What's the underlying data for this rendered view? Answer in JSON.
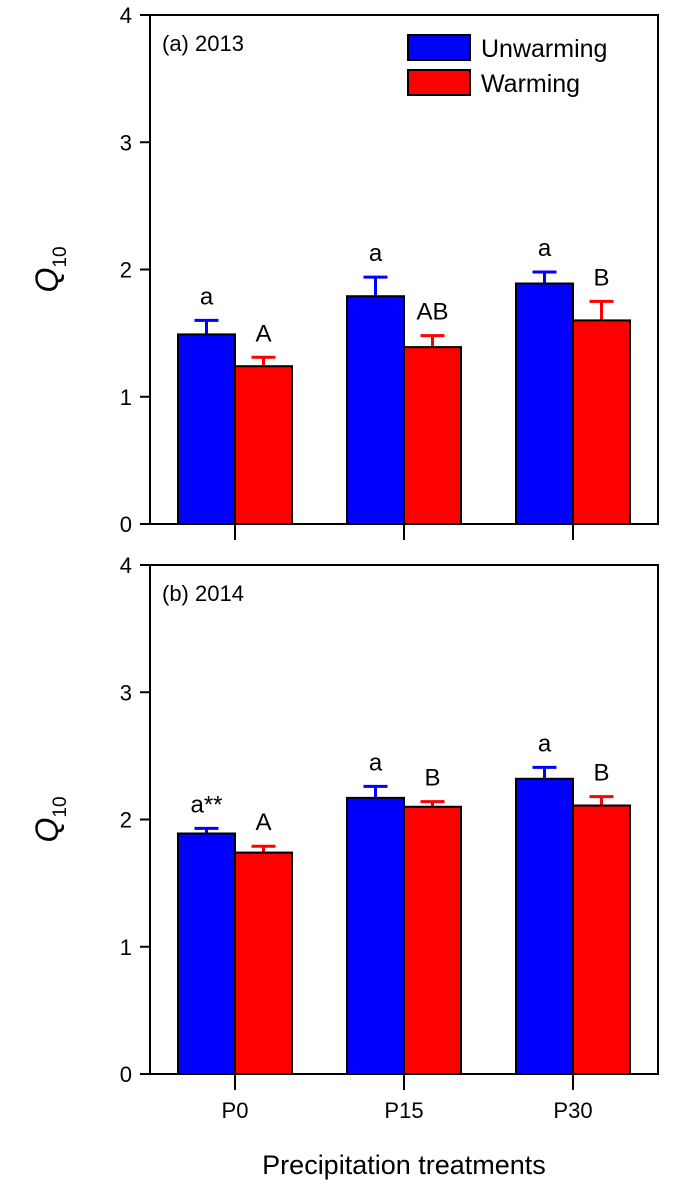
{
  "chart_data": [
    {
      "type": "bar",
      "panel_label": "(a) 2013",
      "categories": [
        "P0",
        "P15",
        "P30"
      ],
      "ylabel": {
        "main": "Q",
        "sub": "10"
      },
      "xlabel": "",
      "ylim": [
        0,
        4
      ],
      "yticks": [
        "0",
        "1",
        "2",
        "3",
        "4"
      ],
      "legend": {
        "position": "top-right",
        "entries": [
          "Unwarming",
          "Warming"
        ]
      },
      "series": [
        {
          "name": "Unwarming",
          "color": "#0000ff",
          "values": [
            1.49,
            1.79,
            1.89
          ],
          "errors": [
            0.11,
            0.15,
            0.09
          ],
          "annotations": [
            "a",
            "a",
            "a"
          ]
        },
        {
          "name": "Warming",
          "color": "#ff0000",
          "values": [
            1.24,
            1.39,
            1.6
          ],
          "errors": [
            0.07,
            0.09,
            0.15
          ],
          "annotations": [
            "A",
            "AB",
            "B"
          ]
        }
      ]
    },
    {
      "type": "bar",
      "panel_label": "(b) 2014",
      "categories": [
        "P0",
        "P15",
        "P30"
      ],
      "ylabel": {
        "main": "Q",
        "sub": "10"
      },
      "xlabel": "Precipitation treatments",
      "ylim": [
        0,
        4
      ],
      "yticks": [
        "0",
        "1",
        "2",
        "3",
        "4"
      ],
      "series": [
        {
          "name": "Unwarming",
          "color": "#0000ff",
          "values": [
            1.89,
            2.17,
            2.32
          ],
          "errors": [
            0.04,
            0.09,
            0.09
          ],
          "annotations": [
            "a**",
            "a",
            "a"
          ]
        },
        {
          "name": "Warming",
          "color": "#ff0000",
          "values": [
            1.74,
            2.1,
            2.11
          ],
          "errors": [
            0.05,
            0.04,
            0.07
          ],
          "annotations": [
            "A",
            "B",
            "B"
          ]
        }
      ]
    }
  ]
}
